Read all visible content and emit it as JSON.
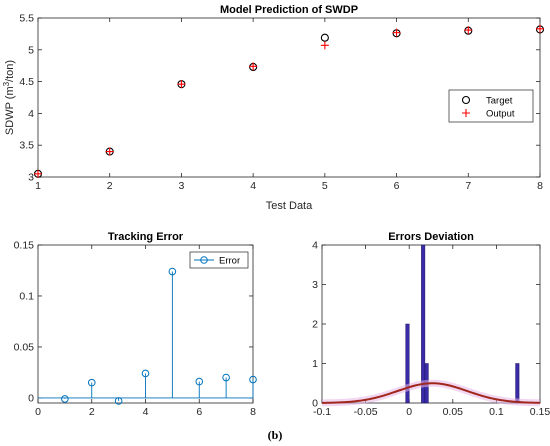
{
  "caption": "(b)",
  "chart_data": [
    {
      "type": "scatter",
      "title": "Model Prediction of SWDP",
      "xlabel": "Test Data",
      "ylabel_main": "SDWP (m",
      "ylabel_sup": "3",
      "ylabel_tail": "/ton)",
      "xlim": [
        1,
        8
      ],
      "ylim": [
        3,
        5.5
      ],
      "xticks": [
        1,
        2,
        3,
        4,
        5,
        6,
        7,
        8
      ],
      "xtick_labels": [
        "1",
        "2",
        "3",
        "4",
        "5",
        "6",
        "7",
        "8"
      ],
      "yticks": [
        3,
        3.5,
        4,
        4.5,
        5,
        5.5
      ],
      "ytick_labels": [
        "3",
        "3.5",
        "4",
        "4.5",
        "5",
        "5.5"
      ],
      "legend_position": "right-middle",
      "series": [
        {
          "name": "Target",
          "marker": "circle",
          "color": "#000000",
          "x": [
            1,
            2,
            3,
            4,
            5,
            6,
            7,
            8
          ],
          "values": [
            3.05,
            3.4,
            4.46,
            4.73,
            5.19,
            5.26,
            5.3,
            5.32
          ]
        },
        {
          "name": "Output",
          "marker": "plus",
          "color": "#ff0000",
          "x": [
            1,
            2,
            3,
            4,
            5,
            6,
            7,
            8
          ],
          "values": [
            3.05,
            3.4,
            4.46,
            4.74,
            5.07,
            5.27,
            5.31,
            5.33
          ]
        }
      ]
    },
    {
      "type": "stem",
      "title": "Tracking Error",
      "xlim": [
        0,
        8
      ],
      "ylim": [
        -0.005,
        0.15
      ],
      "xticks": [
        0,
        2,
        4,
        6,
        8
      ],
      "xtick_labels": [
        "0",
        "2",
        "4",
        "6",
        "8"
      ],
      "yticks": [
        0,
        0.05,
        0.1,
        0.15
      ],
      "ytick_labels": [
        "0",
        "0.05",
        "0.1",
        "0.15"
      ],
      "legend_position": "top-right",
      "series": [
        {
          "name": "Error",
          "color": "#0072bd",
          "x": [
            1,
            2,
            3,
            4,
            5,
            6,
            7,
            8
          ],
          "values": [
            -0.001,
            0.015,
            -0.003,
            0.024,
            0.124,
            0.016,
            0.02,
            0.018
          ]
        }
      ]
    },
    {
      "type": "bar",
      "title": "Errors Deviation",
      "xlim": [
        -0.1,
        0.15
      ],
      "ylim": [
        0,
        4
      ],
      "xticks": [
        -0.1,
        -0.05,
        0,
        0.05,
        0.1,
        0.15
      ],
      "xtick_labels": [
        "-0.1",
        "-0.05",
        "0",
        "0.05",
        "0.1",
        "0.15"
      ],
      "yticks": [
        0,
        1,
        2,
        3,
        4
      ],
      "ytick_labels": [
        "0",
        "1",
        "2",
        "3",
        "4"
      ],
      "bar_color": "#3a2ca6",
      "curve_color": "#a0271c",
      "bars": [
        {
          "center": -0.002,
          "width": 0.004,
          "value": 2
        },
        {
          "center": 0.016,
          "width": 0.004,
          "value": 4
        },
        {
          "center": 0.02,
          "width": 0.004,
          "value": 1
        },
        {
          "center": 0.124,
          "width": 0.004,
          "value": 1
        }
      ],
      "fit": {
        "mean": 0.0266,
        "std": 0.04,
        "peak": 0.5
      }
    }
  ]
}
